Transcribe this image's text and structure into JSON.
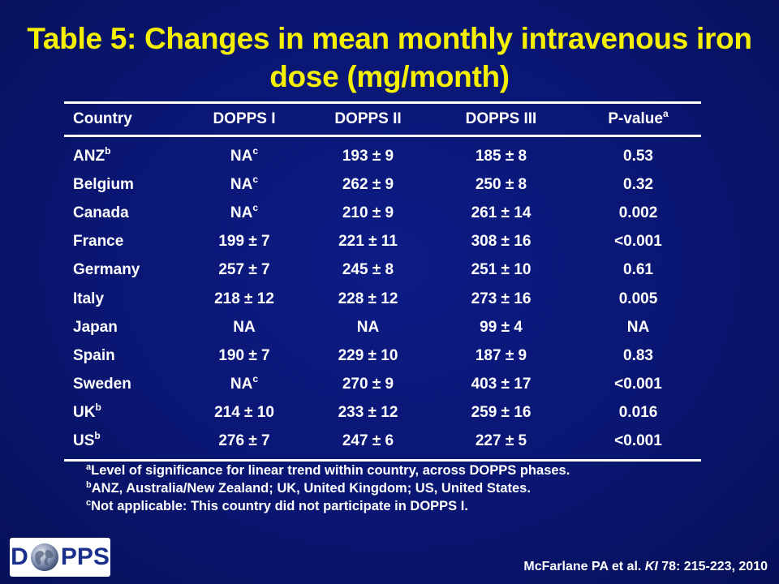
{
  "title": {
    "line1": "Table 5: Changes in mean monthly intravenous iron",
    "line2": "dose (mg/month)"
  },
  "table": {
    "headers": [
      {
        "text": "Country",
        "sup": ""
      },
      {
        "text": "DOPPS I",
        "sup": ""
      },
      {
        "text": "DOPPS II",
        "sup": ""
      },
      {
        "text": "DOPPS III",
        "sup": ""
      },
      {
        "text": "P-value",
        "sup": "a"
      }
    ],
    "rows": [
      {
        "country": "ANZ",
        "country_sup": "b",
        "dopps1": "NA",
        "dopps1_sup": "c",
        "dopps2": "193 ± 9",
        "dopps3": "185 ± 8",
        "pvalue": "0.53"
      },
      {
        "country": "Belgium",
        "country_sup": "",
        "dopps1": "NA",
        "dopps1_sup": "c",
        "dopps2": "262 ± 9",
        "dopps3": "250 ± 8",
        "pvalue": "0.32"
      },
      {
        "country": "Canada",
        "country_sup": "",
        "dopps1": "NA",
        "dopps1_sup": "c",
        "dopps2": "210 ± 9",
        "dopps3": "261 ± 14",
        "pvalue": "0.002"
      },
      {
        "country": "France",
        "country_sup": "",
        "dopps1": "199 ± 7",
        "dopps1_sup": "",
        "dopps2": "221 ± 11",
        "dopps3": "308 ± 16",
        "pvalue": "<0.001"
      },
      {
        "country": "Germany",
        "country_sup": "",
        "dopps1": "257 ± 7",
        "dopps1_sup": "",
        "dopps2": "245 ± 8",
        "dopps3": "251 ± 10",
        "pvalue": "0.61"
      },
      {
        "country": "Italy",
        "country_sup": "",
        "dopps1": "218 ± 12",
        "dopps1_sup": "",
        "dopps2": "228 ± 12",
        "dopps3": "273 ± 16",
        "pvalue": "0.005"
      },
      {
        "country": "Japan",
        "country_sup": "",
        "dopps1": "NA",
        "dopps1_sup": "",
        "dopps2": "NA",
        "dopps3": "99 ± 4",
        "pvalue": "NA"
      },
      {
        "country": "Spain",
        "country_sup": "",
        "dopps1": "190 ± 7",
        "dopps1_sup": "",
        "dopps2": "229 ± 10",
        "dopps3": "187 ± 9",
        "pvalue": "0.83"
      },
      {
        "country": "Sweden",
        "country_sup": "",
        "dopps1": "NA",
        "dopps1_sup": "c",
        "dopps2": "270 ± 9",
        "dopps3": "403 ± 17",
        "pvalue": "<0.001"
      },
      {
        "country": "UK",
        "country_sup": "b",
        "dopps1": "214 ± 10",
        "dopps1_sup": "",
        "dopps2": "233 ± 12",
        "dopps3": "259 ± 16",
        "pvalue": "0.016"
      },
      {
        "country": "US",
        "country_sup": "b",
        "dopps1": "276 ± 7",
        "dopps1_sup": "",
        "dopps2": "247 ± 6",
        "dopps3": "227 ± 5",
        "pvalue": "<0.001"
      }
    ]
  },
  "footnotes": [
    {
      "marker": "a",
      "text": "Level of significance for linear trend within country, across DOPPS phases."
    },
    {
      "marker": "b",
      "text": "ANZ, Australia/New Zealand; UK, United Kingdom; US, United States."
    },
    {
      "marker": "c",
      "text": "Not applicable: This country did not participate in DOPPS I."
    }
  ],
  "logo": {
    "left": "D",
    "right": "PPS"
  },
  "citation": {
    "authors": "McFarlane PA et al. ",
    "journal": "KI",
    "details": " 78: 215-223, 2010"
  },
  "colors": {
    "background": "#0a1672",
    "title": "#f5f000",
    "text": "#ffffff",
    "logo_text": "#1b2f8c"
  }
}
